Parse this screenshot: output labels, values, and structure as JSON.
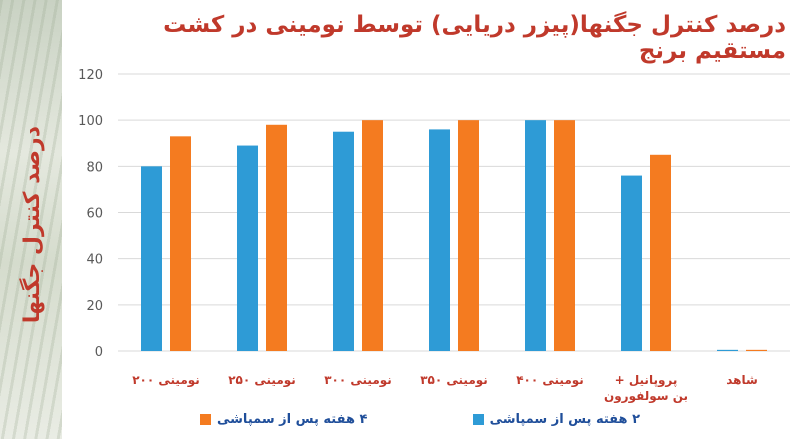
{
  "slide": {
    "title": "درصد کنترل جگنها(پیزر دریایی) توسط نومینی در کشت مستقیم برنج"
  },
  "chart_data": {
    "type": "bar",
    "ylabel": "درصد کنترل جگنها",
    "xlabel": "",
    "ylim": [
      0,
      120
    ],
    "yticks": [
      0,
      20,
      40,
      60,
      80,
      100,
      120
    ],
    "grid": true,
    "legend_position": "bottom",
    "categories": [
      [
        "نومینی ۲۰۰"
      ],
      [
        "نومینی ۲۵۰"
      ],
      [
        "نومینی ۳۰۰"
      ],
      [
        "نومینی ۳۵۰"
      ],
      [
        "نومینی ۴۰۰"
      ],
      [
        "پروپانیل +",
        "بن سولفورون"
      ],
      [
        "شاهد"
      ]
    ],
    "series": [
      {
        "name": "۲ هفته پس از سمپاشی",
        "color": "#2e9bd6",
        "values": [
          80,
          89,
          95,
          96,
          100,
          76,
          0.5
        ]
      },
      {
        "name": "۴ هفته پس از سمپاشی",
        "color": "#f47b20",
        "values": [
          93,
          98,
          100,
          100,
          100,
          85,
          0.5
        ]
      }
    ]
  }
}
